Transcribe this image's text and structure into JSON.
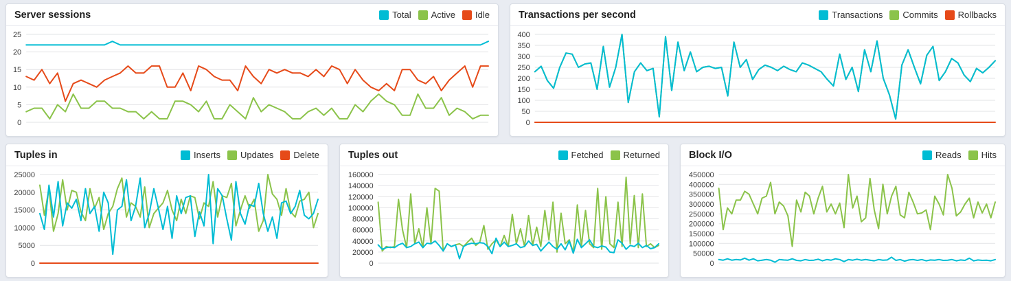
{
  "page": {
    "background": "#e9ecf2",
    "panel_background": "#ffffff"
  },
  "palette": {
    "cyan": "#00BCD4",
    "green": "#8BC34A",
    "red": "#E64A19"
  },
  "chart_data": [
    {
      "type": "line",
      "title": "Server sessions",
      "legend_position": "top-right",
      "grid": true,
      "x_tick_labels_visible": false,
      "ylim": [
        0,
        25
      ],
      "ytick_step": 5,
      "series": [
        {
          "name": "Total",
          "color": "#00BCD4",
          "values": [
            22,
            22,
            22,
            22,
            22,
            22,
            22,
            22,
            22,
            22,
            22,
            23,
            22,
            22,
            22,
            22,
            22,
            22,
            22,
            22,
            22,
            22,
            22,
            22,
            22,
            22,
            22,
            22,
            22,
            22,
            22,
            22,
            22,
            22,
            22,
            22,
            22,
            22,
            22,
            22,
            22,
            22,
            22,
            22,
            22,
            22,
            22,
            22,
            22,
            22,
            22,
            22,
            22,
            22,
            22,
            22,
            22,
            22,
            22,
            23
          ]
        },
        {
          "name": "Active",
          "color": "#8BC34A",
          "values": [
            3,
            4,
            4,
            1,
            5,
            3,
            8,
            4,
            4,
            6,
            6,
            4,
            4,
            3,
            3,
            1,
            3,
            1,
            1,
            6,
            6,
            5,
            3,
            6,
            1,
            1,
            5,
            3,
            1,
            7,
            3,
            5,
            4,
            3,
            1,
            1,
            3,
            4,
            2,
            4,
            1,
            1,
            5,
            3,
            6,
            8,
            6,
            5,
            2,
            2,
            8,
            4,
            4,
            7,
            2,
            4,
            3,
            1,
            2,
            2
          ]
        },
        {
          "name": "Idle",
          "color": "#E64A19",
          "values": [
            13,
            12,
            15,
            11,
            14,
            6,
            11,
            12,
            11,
            10,
            12,
            13,
            14,
            16,
            14,
            14,
            16,
            16,
            10,
            10,
            14,
            9,
            16,
            15,
            13,
            12,
            12,
            9,
            16,
            13,
            11,
            15,
            14,
            15,
            14,
            14,
            13,
            15,
            13,
            16,
            15,
            11,
            15,
            12,
            10,
            9,
            11,
            9,
            15,
            15,
            12,
            11,
            13,
            9,
            12,
            14,
            16,
            10,
            16,
            16
          ]
        }
      ]
    },
    {
      "type": "line",
      "title": "Transactions per second",
      "legend_position": "top-right",
      "grid": true,
      "x_tick_labels_visible": false,
      "ylim": [
        0,
        400
      ],
      "ytick_step": 50,
      "series": [
        {
          "name": "Transactions",
          "color": "#00BCD4",
          "values": [
            230,
            255,
            190,
            155,
            250,
            315,
            310,
            250,
            265,
            270,
            150,
            345,
            160,
            250,
            400,
            90,
            230,
            270,
            235,
            245,
            25,
            390,
            145,
            365,
            235,
            320,
            230,
            250,
            255,
            245,
            250,
            120,
            365,
            250,
            285,
            195,
            240,
            260,
            250,
            235,
            255,
            240,
            230,
            270,
            260,
            245,
            230,
            195,
            165,
            310,
            195,
            250,
            140,
            330,
            230,
            370,
            200,
            125,
            15,
            260,
            330,
            250,
            175,
            305,
            345,
            190,
            230,
            290,
            270,
            215,
            185,
            245,
            225,
            250,
            280
          ]
        },
        {
          "name": "Commits",
          "color": "#8BC34A",
          "values": [
            230,
            255,
            190,
            155,
            250,
            315,
            310,
            250,
            265,
            270,
            150,
            345,
            160,
            250,
            400,
            90,
            230,
            270,
            235,
            245,
            25,
            390,
            145,
            365,
            235,
            320,
            230,
            250,
            255,
            245,
            250,
            120,
            365,
            250,
            285,
            195,
            240,
            260,
            250,
            235,
            255,
            240,
            230,
            270,
            260,
            245,
            230,
            195,
            165,
            310,
            195,
            250,
            140,
            330,
            230,
            370,
            200,
            125,
            15,
            260,
            330,
            250,
            175,
            305,
            345,
            190,
            230,
            290,
            270,
            215,
            185,
            245,
            225,
            250,
            280
          ]
        },
        {
          "name": "Rollbacks",
          "color": "#E64A19",
          "values": [
            0,
            0,
            0,
            0,
            0,
            0,
            0,
            0,
            0,
            0,
            0,
            0,
            0,
            0,
            0,
            0,
            0,
            0,
            0,
            0,
            0,
            0,
            0,
            0,
            0,
            0,
            0,
            0,
            0,
            0,
            0,
            0,
            0,
            0,
            0,
            0,
            0,
            0,
            0,
            0,
            0,
            0,
            0,
            0,
            0,
            0,
            0,
            0,
            0,
            0,
            0,
            0,
            0,
            0,
            0,
            0,
            0,
            0,
            0,
            0,
            0,
            0,
            0,
            0,
            0,
            0,
            0,
            0,
            0,
            0,
            0,
            0,
            0,
            0,
            0
          ]
        }
      ]
    },
    {
      "type": "line",
      "title": "Tuples in",
      "legend_position": "top-right",
      "grid": true,
      "x_tick_labels_visible": false,
      "ylim": [
        0,
        25000
      ],
      "ytick_step": 5000,
      "series": [
        {
          "name": "Inserts",
          "color": "#00BCD4",
          "values": [
            14000,
            9500,
            22000,
            13000,
            23000,
            10500,
            17000,
            15500,
            18000,
            12000,
            21000,
            14000,
            16000,
            9000,
            20000,
            17000,
            2500,
            15000,
            16000,
            23500,
            12000,
            16000,
            24000,
            10000,
            14000,
            21000,
            15500,
            9500,
            16000,
            7000,
            19000,
            14000,
            18500,
            19000,
            7500,
            14500,
            10500,
            25000,
            5500,
            21000,
            19000,
            12500,
            6500,
            23000,
            14000,
            11000,
            16500,
            16000,
            22500,
            14000,
            9000,
            13000,
            7000,
            17000,
            17500,
            14000,
            16000,
            20500,
            13500,
            12500,
            14000,
            18000
          ]
        },
        {
          "name": "Updates",
          "color": "#8BC34A",
          "values": [
            22000,
            13500,
            21000,
            9000,
            14000,
            23500,
            15000,
            20500,
            20000,
            14500,
            12000,
            21000,
            15500,
            18500,
            9500,
            14000,
            16000,
            21000,
            24000,
            13000,
            17000,
            16000,
            13000,
            21500,
            10000,
            14000,
            15500,
            17000,
            20500,
            15000,
            12000,
            18000,
            14000,
            19000,
            18500,
            12500,
            17000,
            16000,
            23000,
            13000,
            19000,
            18500,
            22500,
            10500,
            15000,
            19000,
            15500,
            18000,
            9000,
            12000,
            25000,
            19500,
            18000,
            13500,
            21000,
            14500,
            13000,
            17500,
            18000,
            20000,
            10000,
            14000
          ]
        },
        {
          "name": "Delete",
          "color": "#E64A19",
          "values": [
            0,
            0,
            0,
            0,
            0,
            0,
            0,
            0,
            0,
            0,
            0,
            0,
            0,
            0,
            0,
            0,
            0,
            0,
            0,
            0,
            0,
            0,
            0,
            0,
            0,
            0,
            0,
            0,
            0,
            0,
            0,
            0,
            0,
            0,
            0,
            0,
            0,
            0,
            0,
            0,
            0,
            0,
            0,
            0,
            0,
            0,
            0,
            0,
            0,
            0,
            0,
            0,
            0,
            0,
            0,
            0,
            0,
            0,
            0,
            0,
            0,
            0
          ]
        }
      ]
    },
    {
      "type": "line",
      "title": "Tuples out",
      "legend_position": "top-right",
      "grid": true,
      "x_tick_labels_visible": false,
      "ylim": [
        0,
        160000
      ],
      "ytick_step": 20000,
      "series": [
        {
          "name": "Fetched",
          "color": "#00BCD4",
          "values": [
            33000,
            25000,
            28000,
            29000,
            28000,
            33000,
            36000,
            28000,
            30000,
            35000,
            38000,
            28000,
            36000,
            35000,
            40000,
            32000,
            22000,
            35000,
            30000,
            33000,
            8000,
            30000,
            34000,
            36000,
            35000,
            37000,
            36000,
            30000,
            17000,
            45000,
            30000,
            38000,
            30000,
            32000,
            35000,
            28000,
            30000,
            40000,
            32000,
            34000,
            22000,
            30000,
            38000,
            30000,
            25000,
            35000,
            24000,
            40000,
            18000,
            43000,
            28000,
            35000,
            42000,
            30000,
            28000,
            31000,
            29000,
            20000,
            19000,
            42000,
            36000,
            25000,
            32000,
            30000,
            36000,
            28000,
            32000,
            26000,
            28000,
            35000
          ]
        },
        {
          "name": "Returned",
          "color": "#8BC34A",
          "values": [
            110000,
            22000,
            30000,
            28000,
            30000,
            115000,
            60000,
            28000,
            125000,
            35000,
            62000,
            28000,
            100000,
            35000,
            135000,
            130000,
            22000,
            35000,
            30000,
            33000,
            35000,
            30000,
            38000,
            45000,
            32000,
            38000,
            68000,
            25000,
            35000,
            42000,
            30000,
            50000,
            30000,
            88000,
            35000,
            62000,
            30000,
            86000,
            32000,
            65000,
            30000,
            95000,
            42000,
            110000,
            20000,
            90000,
            35000,
            42000,
            20000,
            105000,
            30000,
            95000,
            35000,
            28000,
            135000,
            25000,
            120000,
            35000,
            28000,
            110000,
            30000,
            155000,
            35000,
            122000,
            28000,
            125000,
            30000,
            35000,
            28000,
            32000
          ]
        }
      ]
    },
    {
      "type": "line",
      "title": "Block I/O",
      "legend_position": "top-right",
      "grid": true,
      "x_tick_labels_visible": false,
      "ylim": [
        0,
        450000
      ],
      "ytick_step": 50000,
      "series": [
        {
          "name": "Reads",
          "color": "#00BCD4",
          "values": [
            18000,
            15000,
            22000,
            15000,
            18000,
            16000,
            25000,
            15000,
            22000,
            12000,
            15000,
            18000,
            15000,
            5000,
            18000,
            16000,
            15000,
            22000,
            14000,
            12000,
            18000,
            14000,
            15000,
            20000,
            12000,
            18000,
            15000,
            22000,
            18000,
            8000,
            18000,
            15000,
            20000,
            15000,
            18000,
            15000,
            12000,
            18000,
            15000,
            16000,
            30000,
            14000,
            18000,
            10000,
            16000,
            18000,
            14000,
            18000,
            12000,
            16000,
            15000,
            18000,
            14000,
            15000,
            18000,
            12000,
            16000,
            14000,
            25000,
            12000,
            16000,
            14000,
            15000,
            12000,
            18000
          ]
        },
        {
          "name": "Hits",
          "color": "#8BC34A",
          "values": [
            380000,
            170000,
            280000,
            250000,
            320000,
            320000,
            365000,
            350000,
            300000,
            250000,
            330000,
            340000,
            410000,
            250000,
            310000,
            290000,
            240000,
            85000,
            320000,
            260000,
            360000,
            340000,
            250000,
            330000,
            390000,
            260000,
            300000,
            250000,
            305000,
            180000,
            450000,
            280000,
            340000,
            210000,
            230000,
            430000,
            270000,
            175000,
            400000,
            250000,
            340000,
            390000,
            245000,
            230000,
            360000,
            310000,
            250000,
            255000,
            270000,
            170000,
            340000,
            300000,
            245000,
            450000,
            380000,
            240000,
            260000,
            300000,
            330000,
            230000,
            310000,
            255000,
            300000,
            230000,
            310000
          ]
        }
      ]
    }
  ]
}
